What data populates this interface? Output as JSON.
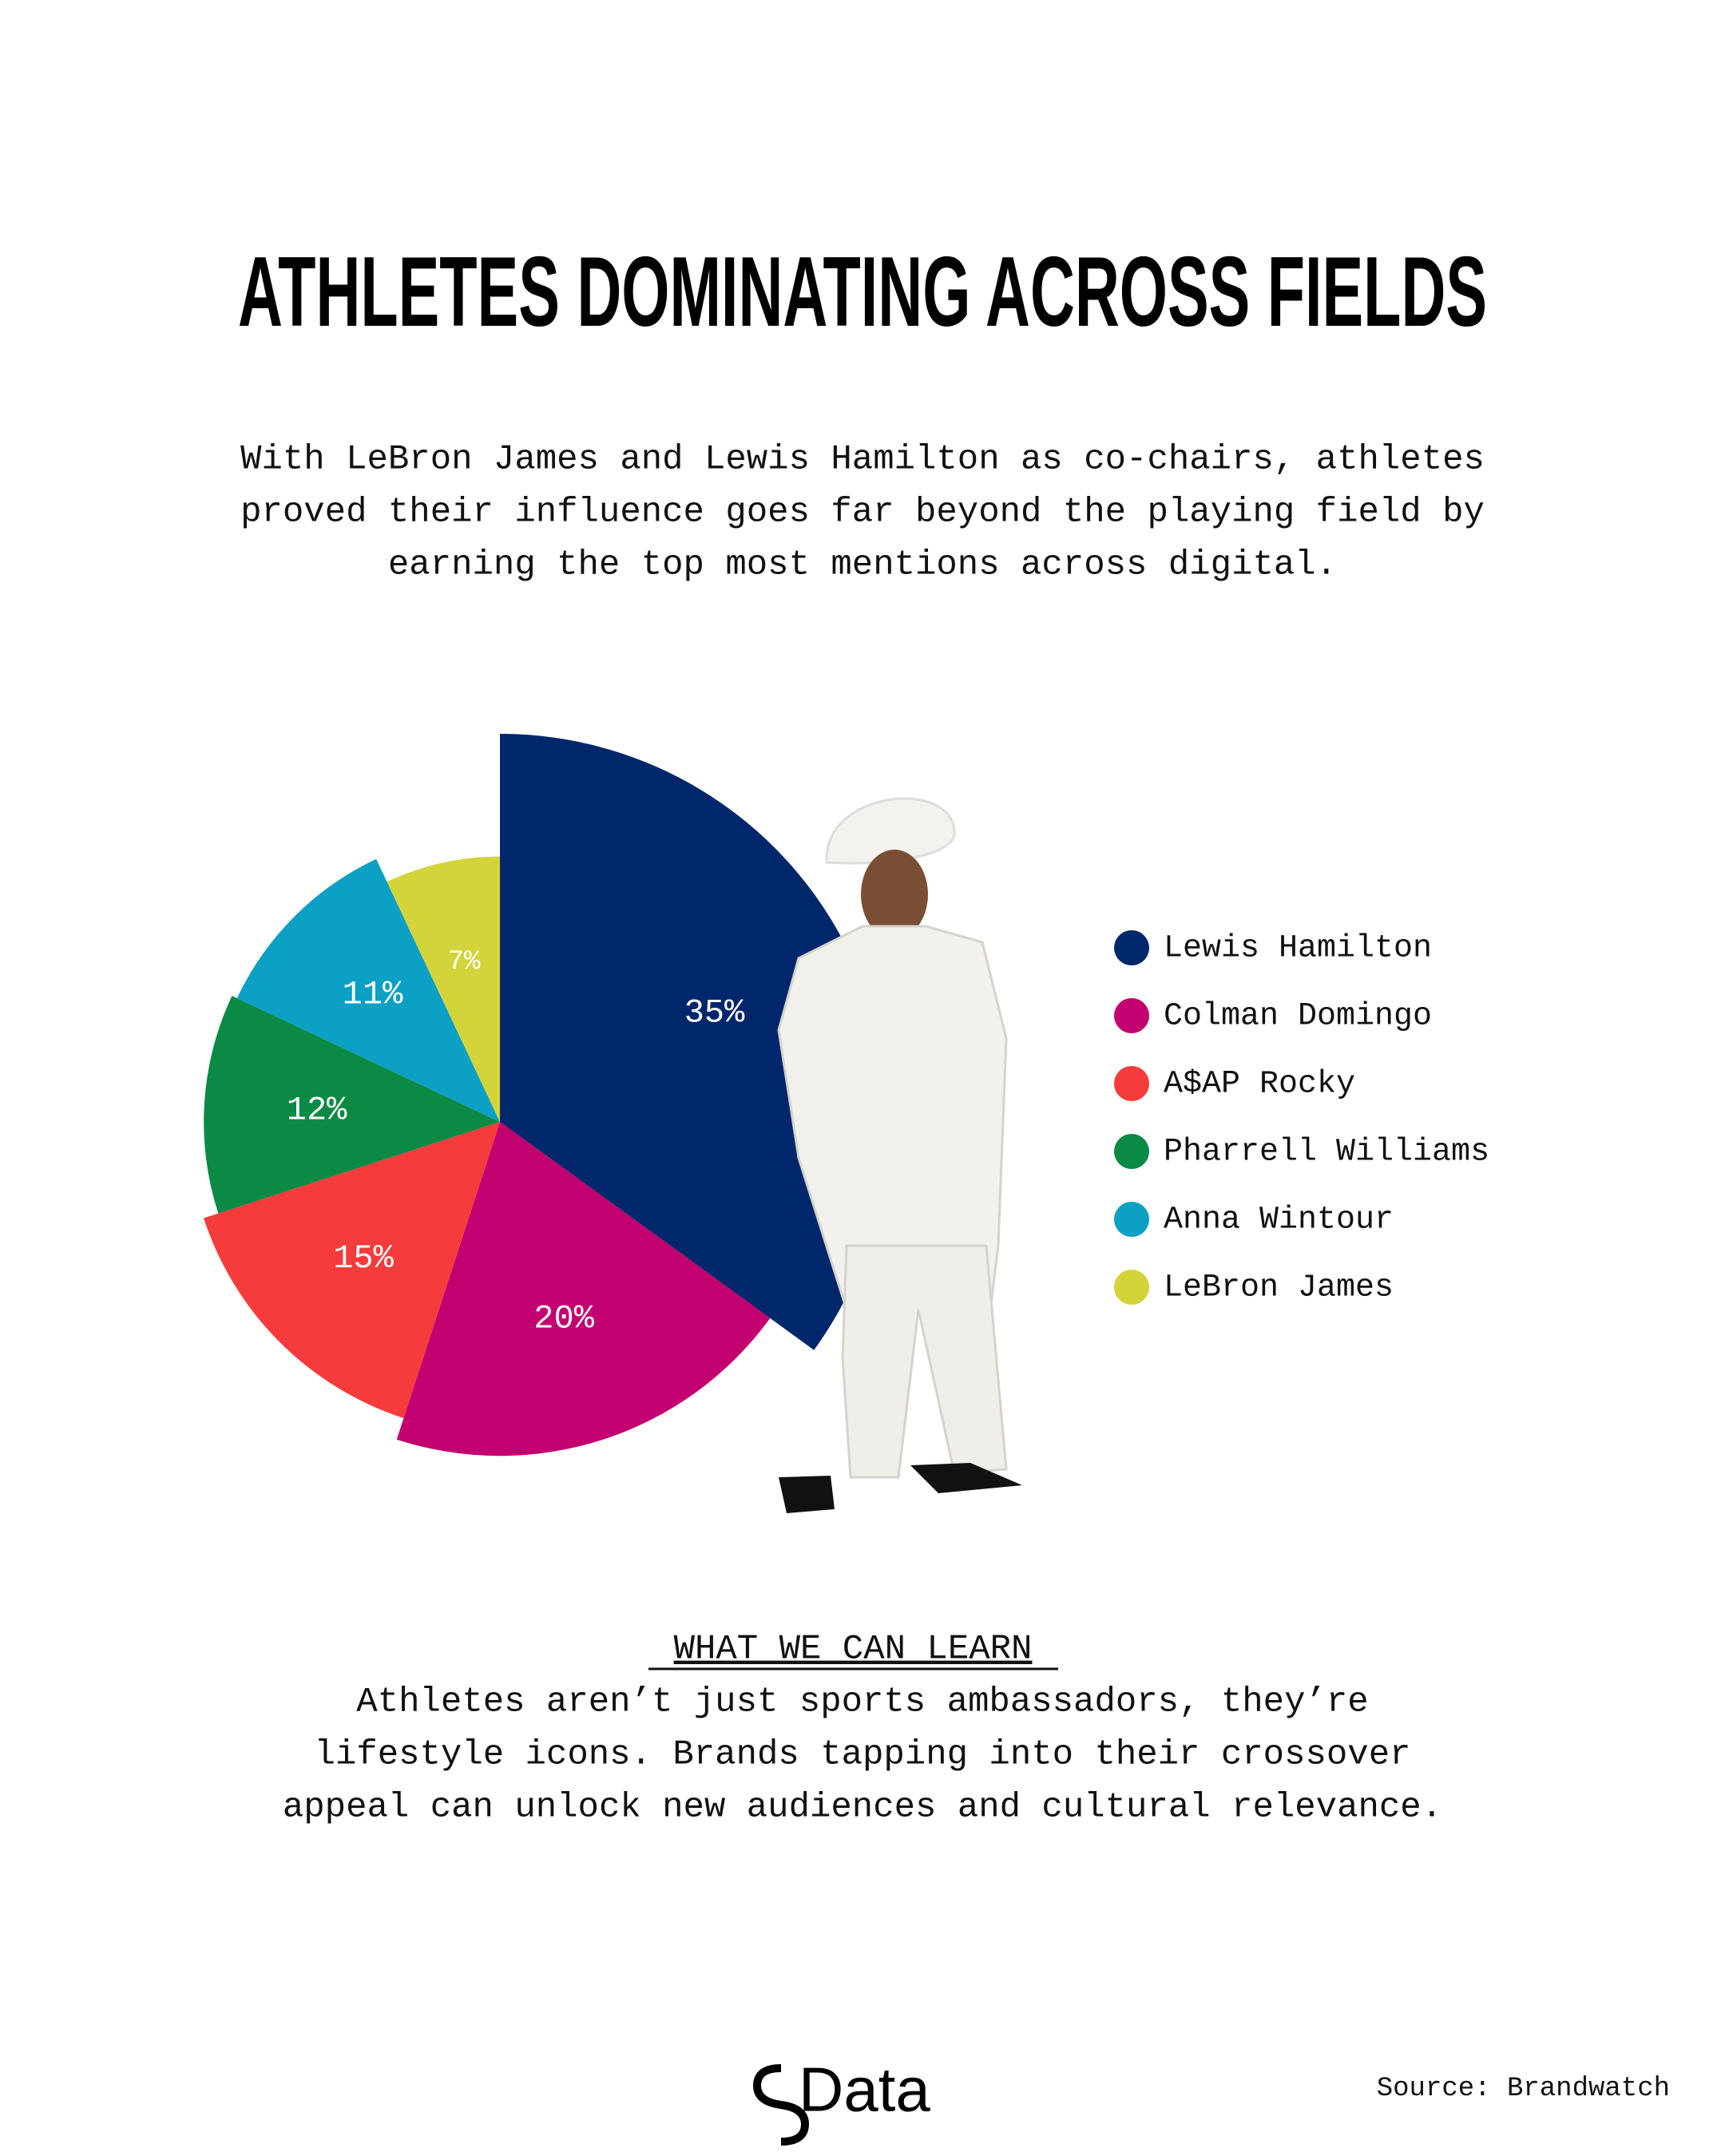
{
  "chart_data": {
    "type": "pie",
    "title": "ATHLETES DOMINATING ACROSS FIELDS",
    "subtitle": [
      "With LeBron James and Lewis Hamilton as co-chairs, athletes",
      "proved their influence goes far beyond the playing field by",
      "earning the top most mentions across digital."
    ],
    "categories": [
      "Lewis Hamilton",
      "Colman Domingo",
      "A$AP Rocky",
      "Pharrell Williams",
      "Anna Wintour",
      "LeBron James"
    ],
    "values": [
      35,
      20,
      15,
      12,
      11,
      7
    ],
    "value_labels": [
      "35%",
      "20%",
      "15%",
      "12%",
      "11%",
      "7%"
    ],
    "colors": [
      "#00276b",
      "#c3006f",
      "#f53b3b",
      "#0a8a45",
      "#0ba0c4",
      "#d3d43a"
    ],
    "legend": "right",
    "learn_heading": "WHAT WE CAN LEARN",
    "learn_text": [
      "Athletes aren’t just sports ambassadors, they’re",
      "lifestyle icons. Brands tapping into their crossover",
      "appeal can unlock new audiences and cultural relevance."
    ],
    "logo": "Data",
    "source": "Source: Brandwatch"
  }
}
